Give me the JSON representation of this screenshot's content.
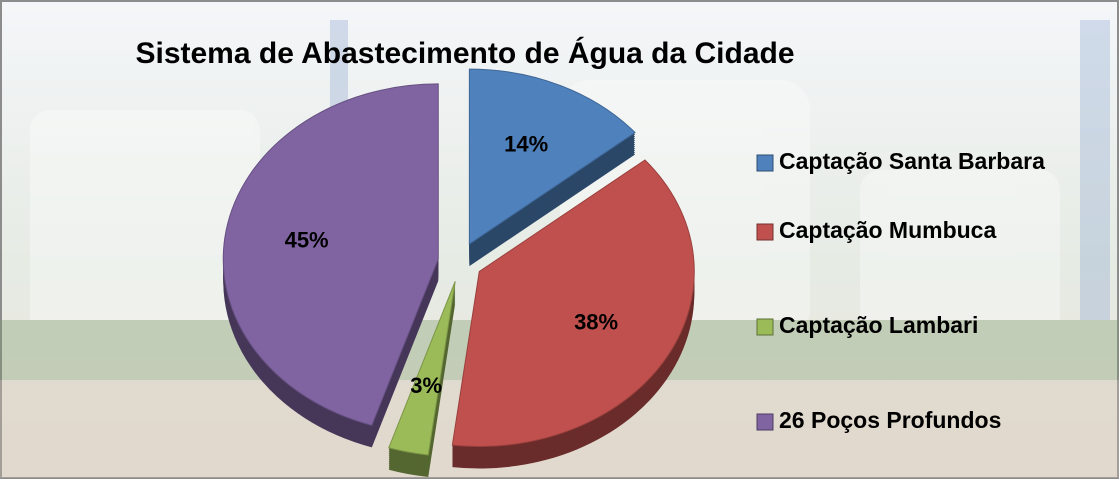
{
  "chart_data": {
    "type": "pie",
    "title": "Sistema de Abastecimento de Água da Cidade",
    "categories": [
      "Captação Santa Barbara",
      "Captação Mumbuca",
      "Captação Lambari",
      "26 Poços Profundos"
    ],
    "values": [
      14,
      38,
      3,
      45
    ],
    "value_labels": [
      "14%",
      "38%",
      "3%",
      "45%"
    ],
    "colors": [
      "#4f81bd",
      "#c0504d",
      "#9bbb59",
      "#8064a2"
    ],
    "legend": "right"
  }
}
